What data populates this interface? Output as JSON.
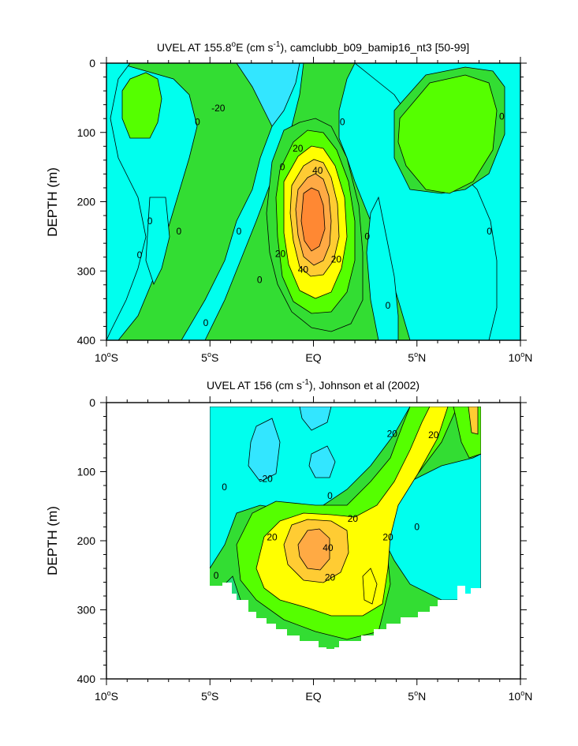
{
  "colors": {
    "cyan": "#00ffee",
    "light_cyan": "#33e6ff",
    "green_mid": "#22dd77",
    "green": "#33dd33",
    "lime": "#55ff00",
    "yellow": "#ffff00",
    "gold": "#ffcc33",
    "orange_light": "#ffaa44",
    "orange": "#ff8833"
  },
  "chart_data": [
    {
      "type": "contour",
      "title_prefix": "UVEL AT 155.8",
      "title_deg": "o",
      "title_mid": "E (cm s",
      "title_exp": "-1",
      "title_suffix": "), camclubb_b09_bamip16_nt3 [50-99]",
      "ylabel": "DEPTH (m)",
      "xlabel": "",
      "xlim": [
        -10,
        10
      ],
      "ylim": [
        400,
        0
      ],
      "x_ticks": [
        {
          "value": -10,
          "num": "10",
          "deg": "o",
          "hemi": "S"
        },
        {
          "value": -5,
          "num": "5",
          "deg": "o",
          "hemi": "S"
        },
        {
          "value": 0,
          "num": "EQ",
          "deg": "",
          "hemi": ""
        },
        {
          "value": 5,
          "num": "5",
          "deg": "o",
          "hemi": "N"
        },
        {
          "value": 10,
          "num": "10",
          "deg": "o",
          "hemi": "N"
        }
      ],
      "y_ticks": [
        {
          "value": 0,
          "label": "0"
        },
        {
          "value": 100,
          "label": "100"
        },
        {
          "value": 200,
          "label": "200"
        },
        {
          "value": 300,
          "label": "300"
        },
        {
          "value": 400,
          "label": "400"
        }
      ],
      "contour_labels": [
        {
          "lat": -4.6,
          "depth": 65,
          "text": "-20"
        },
        {
          "lat": -5.6,
          "depth": 85,
          "text": "0"
        },
        {
          "lat": 1.4,
          "depth": 85,
          "text": "0"
        },
        {
          "lat": 9.1,
          "depth": 77,
          "text": "0"
        },
        {
          "lat": -1.5,
          "depth": 150,
          "text": "0"
        },
        {
          "lat": -0.75,
          "depth": 123,
          "text": "20"
        },
        {
          "lat": 0.2,
          "depth": 155,
          "text": "40"
        },
        {
          "lat": -7.9,
          "depth": 228,
          "text": "0"
        },
        {
          "lat": -6.5,
          "depth": 243,
          "text": "0"
        },
        {
          "lat": -3.6,
          "depth": 243,
          "text": "0"
        },
        {
          "lat": 8.5,
          "depth": 243,
          "text": "0"
        },
        {
          "lat": 2.6,
          "depth": 250,
          "text": "0"
        },
        {
          "lat": -8.4,
          "depth": 277,
          "text": "0"
        },
        {
          "lat": -1.6,
          "depth": 275,
          "text": "20"
        },
        {
          "lat": 1.1,
          "depth": 283,
          "text": "20"
        },
        {
          "lat": -0.5,
          "depth": 298,
          "text": "40"
        },
        {
          "lat": -2.6,
          "depth": 313,
          "text": "0"
        },
        {
          "lat": 3.6,
          "depth": 350,
          "text": "0"
        },
        {
          "lat": -5.2,
          "depth": 375,
          "text": "0"
        }
      ]
    },
    {
      "type": "contour",
      "title_prefix": "UVEL AT 156 (cm s",
      "title_exp": "-1",
      "title_suffix": "), Johnson et al (2002)",
      "ylabel": "DEPTH (m)",
      "xlabel": "",
      "xlim": [
        -10,
        10
      ],
      "ylim": [
        400,
        0
      ],
      "x_ticks": [
        {
          "value": -10,
          "num": "10",
          "deg": "o",
          "hemi": "S"
        },
        {
          "value": -5,
          "num": "5",
          "deg": "o",
          "hemi": "S"
        },
        {
          "value": 0,
          "num": "EQ",
          "deg": "",
          "hemi": ""
        },
        {
          "value": 5,
          "num": "5",
          "deg": "o",
          "hemi": "N"
        },
        {
          "value": 10,
          "num": "10",
          "deg": "o",
          "hemi": "N"
        }
      ],
      "y_ticks": [
        {
          "value": 0,
          "label": "0"
        },
        {
          "value": 100,
          "label": "100"
        },
        {
          "value": 200,
          "label": "200"
        },
        {
          "value": 300,
          "label": "300"
        },
        {
          "value": 400,
          "label": "400"
        }
      ],
      "contour_labels": [
        {
          "lat": 3.8,
          "depth": 45,
          "text": "20"
        },
        {
          "lat": 5.8,
          "depth": 47,
          "text": "20"
        },
        {
          "lat": -2.3,
          "depth": 110,
          "text": "-20"
        },
        {
          "lat": -4.3,
          "depth": 122,
          "text": "0"
        },
        {
          "lat": 0.8,
          "depth": 135,
          "text": "0"
        },
        {
          "lat": 1.9,
          "depth": 168,
          "text": "20"
        },
        {
          "lat": 5.0,
          "depth": 180,
          "text": "0"
        },
        {
          "lat": -2.0,
          "depth": 195,
          "text": "20"
        },
        {
          "lat": 3.6,
          "depth": 195,
          "text": "20"
        },
        {
          "lat": 0.7,
          "depth": 210,
          "text": "40"
        },
        {
          "lat": -4.7,
          "depth": 250,
          "text": "0"
        },
        {
          "lat": 0.8,
          "depth": 253,
          "text": "20"
        }
      ]
    }
  ]
}
